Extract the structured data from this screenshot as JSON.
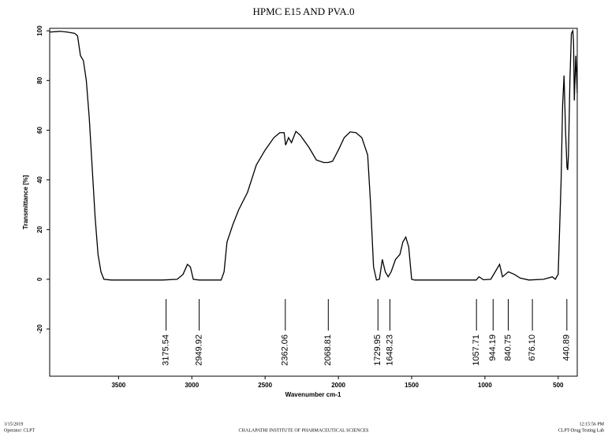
{
  "chart_data": {
    "type": "line",
    "title": "HPMC E15 AND PVA.0",
    "x_label": "Wavenumber cm-1",
    "y_label": "Transmittance [%]",
    "xlim": [
      3970,
      370
    ],
    "ylim": [
      -39,
      101
    ],
    "xticks": [
      3500,
      3000,
      2500,
      2000,
      1500,
      1000,
      500
    ],
    "yticks": [
      -20,
      0,
      20,
      40,
      60,
      80,
      100
    ],
    "color": "#000000",
    "x": [
      3970,
      3900,
      3850,
      3800,
      3780,
      3760,
      3740,
      3720,
      3700,
      3680,
      3660,
      3640,
      3620,
      3600,
      3550,
      3400,
      3200,
      3100,
      3060,
      3030,
      3010,
      2990,
      2950,
      2800,
      2780,
      2760,
      2720,
      2680,
      2620,
      2560,
      2500,
      2440,
      2400,
      2370,
      2360,
      2340,
      2320,
      2290,
      2260,
      2200,
      2150,
      2100,
      2070,
      2040,
      2000,
      1960,
      1920,
      1880,
      1840,
      1800,
      1780,
      1760,
      1740,
      1720,
      1700,
      1680,
      1660,
      1640,
      1610,
      1580,
      1560,
      1540,
      1520,
      1500,
      1480,
      1200,
      1060,
      1040,
      1010,
      960,
      920,
      900,
      880,
      860,
      840,
      800,
      760,
      700,
      600,
      540,
      520,
      500,
      480,
      470,
      460,
      450,
      440,
      435,
      430,
      420,
      410,
      400,
      395,
      390,
      380,
      370
    ],
    "y": [
      99.5,
      99.8,
      99.5,
      99,
      98,
      90,
      88,
      80,
      65,
      45,
      25,
      10,
      3,
      0,
      -0.3,
      -0.3,
      -0.3,
      0,
      2,
      6,
      5,
      0,
      -0.3,
      -0.3,
      3,
      15,
      22,
      28,
      35,
      46,
      52,
      57,
      59,
      59,
      54,
      57,
      55,
      59.5,
      58,
      53,
      48,
      47,
      47,
      47.5,
      52,
      57,
      59.3,
      59,
      57,
      50,
      30,
      5,
      -0.3,
      0,
      8,
      3,
      1,
      3,
      8,
      10,
      15,
      17,
      13,
      0,
      -0.3,
      -0.3,
      -0.3,
      1,
      -0.2,
      0,
      4,
      6,
      1,
      2,
      3,
      2,
      0.5,
      -0.3,
      0,
      1,
      0,
      2,
      40,
      70,
      82,
      60,
      45,
      44,
      50,
      80,
      99,
      100,
      95,
      72,
      90,
      75
    ],
    "peaks": [
      {
        "value": 3175.54,
        "label": "3175.54"
      },
      {
        "value": 2949.92,
        "label": "2949.92"
      },
      {
        "value": 2362.06,
        "label": "2362.06"
      },
      {
        "value": 2068.81,
        "label": "2068.81"
      },
      {
        "value": 1729.95,
        "label": "1729.95"
      },
      {
        "value": 1648.23,
        "label": "1648.23"
      },
      {
        "value": 1057.71,
        "label": "1057.71"
      },
      {
        "value": 944.19,
        "label": "944.19"
      },
      {
        "value": 840.75,
        "label": "840.75"
      },
      {
        "value": 676.1,
        "label": "676.10"
      },
      {
        "value": 440.89,
        "label": "440.89"
      }
    ]
  },
  "footer": {
    "date": "3/15/2019",
    "operator": "Operator: CLPT",
    "institute": "CHALAPATHI INSTITUTE OF PHARMACEUTICAL SCIENCES",
    "time": "12:15:56 PM",
    "lab": "CLPT-Drug Testing Lab"
  }
}
